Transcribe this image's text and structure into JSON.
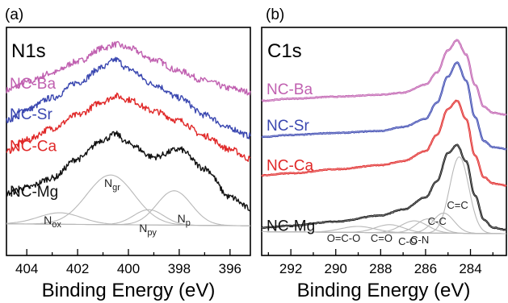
{
  "chart_data": [
    {
      "panel_label": "(a)",
      "title": "N1s",
      "type": "line",
      "xlabel": "Binding Energy (eV)",
      "ylabel": "",
      "xlim": [
        404.8,
        395.2
      ],
      "x_reversed": true,
      "x_ticks": [
        404,
        402,
        400,
        398,
        396
      ],
      "grid": false,
      "series": [
        {
          "name": "NC-Ba",
          "color": "#c060b0",
          "x": [
            404.8,
            404,
            403,
            402,
            401,
            400.5,
            400,
            399,
            398,
            397,
            396,
            395.2
          ],
          "y": [
            0.76,
            0.8,
            0.85,
            0.91,
            0.98,
            1.0,
            0.98,
            0.92,
            0.86,
            0.81,
            0.77,
            0.75
          ]
        },
        {
          "name": "NC-Sr",
          "color": "#3a47b0",
          "x": [
            404.8,
            404,
            403,
            402,
            401,
            400.5,
            400,
            399,
            398,
            397,
            396,
            395.2
          ],
          "y": [
            0.6,
            0.66,
            0.72,
            0.8,
            0.88,
            0.92,
            0.87,
            0.79,
            0.72,
            0.63,
            0.56,
            0.52
          ]
        },
        {
          "name": "NC-Ca",
          "color": "#e02828",
          "x": [
            404.8,
            404,
            403,
            402,
            401,
            400.5,
            400,
            399,
            398,
            397,
            396,
            395.2
          ],
          "y": [
            0.44,
            0.5,
            0.56,
            0.63,
            0.7,
            0.73,
            0.71,
            0.65,
            0.6,
            0.52,
            0.45,
            0.4
          ]
        },
        {
          "name": "NC-Mg",
          "color": "#111111",
          "x": [
            404.8,
            404,
            403,
            402,
            401,
            400.5,
            400,
            399,
            398,
            397,
            396,
            395.2
          ],
          "y": [
            0.22,
            0.25,
            0.3,
            0.4,
            0.5,
            0.53,
            0.48,
            0.41,
            0.45,
            0.35,
            0.2,
            0.14
          ]
        }
      ],
      "fit_components": [
        {
          "label_main": "N",
          "label_sub": "ox",
          "center": 402.7,
          "height": 0.06,
          "fwhm": 2.0
        },
        {
          "label_main": "N",
          "label_sub": "gr",
          "center": 400.7,
          "height": 0.26,
          "fwhm": 2.2
        },
        {
          "label_main": "N",
          "label_sub": "py",
          "center": 399.2,
          "height": 0.08,
          "fwhm": 1.4
        },
        {
          "label_main": "N",
          "label_sub": "p",
          "center": 398.2,
          "height": 0.18,
          "fwhm": 1.6
        }
      ]
    },
    {
      "panel_label": "(b)",
      "title": "C1s",
      "type": "line",
      "xlabel": "Binding Energy (eV)",
      "ylabel": "",
      "xlim": [
        293.3,
        282.4
      ],
      "x_reversed": true,
      "x_ticks": [
        292,
        290,
        288,
        286,
        284
      ],
      "grid": false,
      "series": [
        {
          "name": "NC-Ba",
          "color": "#c060b0",
          "x": [
            293.3,
            292,
            290,
            288,
            287,
            286,
            285.5,
            285,
            284.6,
            284.2,
            283.8,
            283.4,
            283,
            282.4
          ],
          "y": [
            0.7,
            0.71,
            0.72,
            0.73,
            0.74,
            0.78,
            0.84,
            0.95,
            1.0,
            0.93,
            0.78,
            0.67,
            0.64,
            0.63
          ]
        },
        {
          "name": "NC-Sr",
          "color": "#3a47b0",
          "x": [
            293.3,
            292,
            290,
            288,
            287,
            286,
            285.5,
            285,
            284.6,
            284.2,
            283.8,
            283.4,
            283,
            282.4
          ],
          "y": [
            0.52,
            0.53,
            0.54,
            0.55,
            0.57,
            0.61,
            0.69,
            0.82,
            0.89,
            0.8,
            0.62,
            0.5,
            0.47,
            0.46
          ]
        },
        {
          "name": "NC-Ca",
          "color": "#e02828",
          "x": [
            293.3,
            292,
            290,
            288,
            287,
            286,
            285.5,
            285,
            284.6,
            284.2,
            283.8,
            283.4,
            283,
            282.4
          ],
          "y": [
            0.33,
            0.34,
            0.36,
            0.38,
            0.4,
            0.45,
            0.53,
            0.66,
            0.7,
            0.61,
            0.43,
            0.32,
            0.29,
            0.28
          ]
        },
        {
          "name": "NC-Mg",
          "color": "#111111",
          "x": [
            293.3,
            292,
            290,
            288,
            287,
            286,
            285.5,
            285,
            284.6,
            284.2,
            283.8,
            283.4,
            283,
            282.4
          ],
          "y": [
            0.07,
            0.08,
            0.1,
            0.13,
            0.16,
            0.22,
            0.3,
            0.44,
            0.48,
            0.4,
            0.23,
            0.11,
            0.07,
            0.06
          ]
        }
      ],
      "fit_components": [
        {
          "label": "C=C",
          "center": 284.5,
          "height": 0.38,
          "fwhm": 1.0
        },
        {
          "label": "C-C",
          "center": 285.2,
          "height": 0.1,
          "fwhm": 1.1
        },
        {
          "label": "C-N",
          "center": 285.9,
          "height": 0.07,
          "fwhm": 1.2
        },
        {
          "label": "C-O",
          "center": 286.5,
          "height": 0.06,
          "fwhm": 1.4
        },
        {
          "label": "C=O",
          "center": 287.6,
          "height": 0.04,
          "fwhm": 1.5
        },
        {
          "label": "O=C-O",
          "center": 289.0,
          "height": 0.03,
          "fwhm": 1.8
        }
      ]
    }
  ]
}
